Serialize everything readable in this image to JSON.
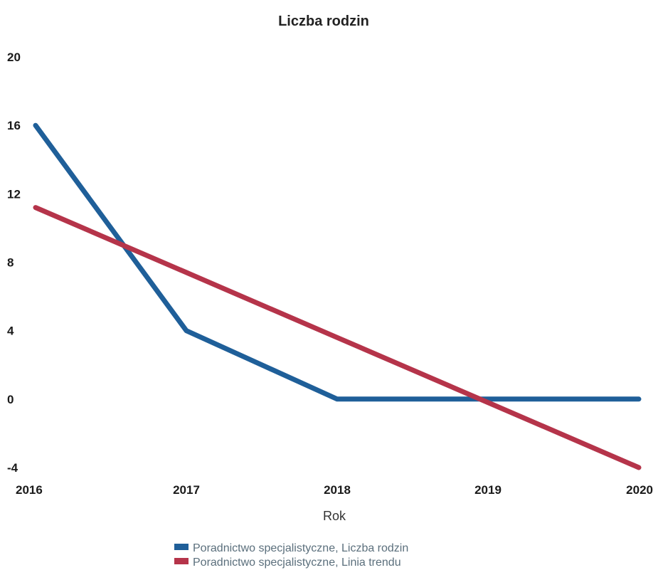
{
  "chart_data": {
    "type": "line",
    "title": "Liczba rodzin",
    "xlabel": "Rok",
    "ylabel": "",
    "x": [
      "2016",
      "2017",
      "2018",
      "2019",
      "2020"
    ],
    "ylim": [
      -4,
      20
    ],
    "yticks": [
      "20",
      "16",
      "12",
      "8",
      "4",
      "0",
      "-4"
    ],
    "grid": false,
    "legend_position": "bottom",
    "series": [
      {
        "name": "Poradnictwo specjalistyczne, Liczba rodzin",
        "values": [
          16,
          4,
          0,
          0,
          0
        ],
        "color": "#1f5f99"
      },
      {
        "name": "Poradnictwo specjalistyczne, Linia trendu",
        "values": [
          11.2,
          7.4,
          3.6,
          -0.2,
          -4.0
        ],
        "color": "#b5344a"
      }
    ]
  }
}
